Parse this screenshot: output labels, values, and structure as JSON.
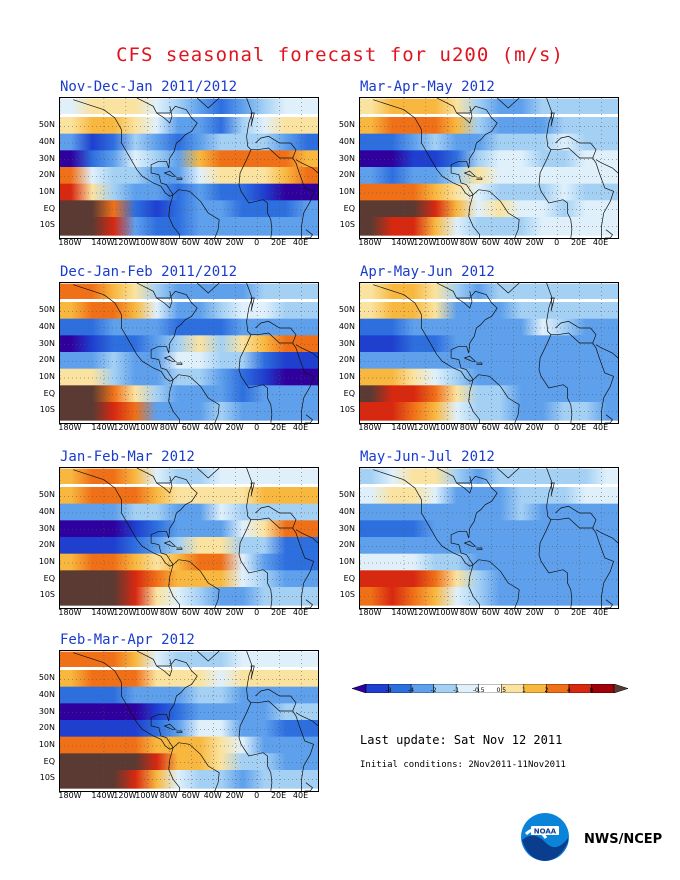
{
  "title": "CFS seasonal forecast for u200 (m/s)",
  "axes": {
    "lat_labels": [
      "50N",
      "40N",
      "30N",
      "20N",
      "10N",
      "EQ",
      "10S"
    ],
    "lon_labels": [
      "180W",
      "140W",
      "120W",
      "100W",
      "80W",
      "60W",
      "40W",
      "20W",
      "0",
      "20E",
      "40E"
    ]
  },
  "panels": [
    {
      "title": "Nov-Dec-Jan 2011/2012",
      "bands": [
        {
          "lat": 62,
          "w": 8,
          "levels": [
            5,
            6,
            6,
            6,
            5,
            4,
            3,
            2,
            3,
            4,
            5,
            5
          ]
        },
        {
          "lat": 50,
          "w": 10,
          "levels": [
            6,
            7,
            7,
            6,
            5,
            3,
            3,
            2,
            4,
            5,
            6,
            6
          ]
        },
        {
          "lat": 40,
          "w": 10,
          "levels": [
            3,
            1,
            2,
            4,
            3,
            2,
            3,
            4,
            4,
            4,
            3,
            2
          ]
        },
        {
          "lat": 30,
          "w": 10,
          "levels": [
            0,
            2,
            3,
            5,
            4,
            3,
            7,
            8,
            8,
            8,
            8,
            7
          ]
        },
        {
          "lat": 20,
          "w": 10,
          "levels": [
            8,
            5,
            4,
            4,
            3,
            3,
            5,
            6,
            6,
            6,
            7,
            8
          ]
        },
        {
          "lat": 10,
          "w": 10,
          "levels": [
            9,
            6,
            4,
            3,
            3,
            2,
            3,
            2,
            2,
            1,
            0,
            0
          ]
        },
        {
          "lat": 0,
          "w": 10,
          "levels": [
            10,
            10,
            8,
            2,
            1,
            2,
            3,
            3,
            2,
            2,
            2,
            3
          ]
        },
        {
          "lat": -10,
          "w": 10,
          "levels": [
            10,
            10,
            9,
            3,
            2,
            2,
            3,
            3,
            3,
            3,
            3,
            3
          ]
        }
      ]
    },
    {
      "title": "Mar-Apr-May 2012",
      "bands": [
        {
          "lat": 62,
          "w": 8,
          "levels": [
            6,
            7,
            7,
            7,
            6,
            4,
            3,
            3,
            4,
            4,
            4,
            4
          ]
        },
        {
          "lat": 50,
          "w": 10,
          "levels": [
            7,
            8,
            8,
            8,
            7,
            4,
            3,
            3,
            3,
            4,
            4,
            4
          ]
        },
        {
          "lat": 40,
          "w": 10,
          "levels": [
            2,
            2,
            3,
            4,
            3,
            3,
            4,
            4,
            4,
            5,
            4,
            4
          ]
        },
        {
          "lat": 30,
          "w": 10,
          "levels": [
            0,
            0,
            1,
            1,
            2,
            4,
            5,
            5,
            4,
            4,
            5,
            5
          ]
        },
        {
          "lat": 20,
          "w": 10,
          "levels": [
            3,
            2,
            3,
            3,
            4,
            6,
            5,
            5,
            5,
            5,
            5,
            5
          ]
        },
        {
          "lat": 10,
          "w": 10,
          "levels": [
            8,
            8,
            8,
            7,
            6,
            5,
            4,
            4,
            4,
            5,
            4,
            4
          ]
        },
        {
          "lat": 0,
          "w": 10,
          "levels": [
            10,
            10,
            10,
            9,
            7,
            5,
            6,
            5,
            5,
            4,
            5,
            5
          ]
        },
        {
          "lat": -10,
          "w": 10,
          "levels": [
            10,
            9,
            9,
            7,
            5,
            4,
            4,
            4,
            5,
            5,
            5,
            5
          ]
        }
      ]
    },
    {
      "title": "Dec-Jan-Feb 2011/2012",
      "bands": [
        {
          "lat": 62,
          "w": 8,
          "levels": [
            8,
            8,
            7,
            6,
            4,
            3,
            3,
            3,
            3,
            4,
            4,
            4
          ]
        },
        {
          "lat": 50,
          "w": 10,
          "levels": [
            7,
            8,
            8,
            7,
            5,
            3,
            3,
            4,
            5,
            5,
            4,
            4
          ]
        },
        {
          "lat": 40,
          "w": 10,
          "levels": [
            2,
            2,
            3,
            3,
            3,
            2,
            2,
            2,
            3,
            3,
            3,
            3
          ]
        },
        {
          "lat": 30,
          "w": 10,
          "levels": [
            0,
            1,
            2,
            2,
            3,
            4,
            6,
            4,
            6,
            7,
            8,
            8
          ]
        },
        {
          "lat": 20,
          "w": 10,
          "levels": [
            3,
            3,
            4,
            3,
            3,
            5,
            5,
            4,
            4,
            2,
            1,
            1
          ]
        },
        {
          "lat": 10,
          "w": 10,
          "levels": [
            6,
            6,
            4,
            3,
            3,
            4,
            4,
            3,
            2,
            1,
            0,
            0
          ]
        },
        {
          "lat": 0,
          "w": 10,
          "levels": [
            10,
            10,
            8,
            6,
            4,
            3,
            3,
            3,
            2,
            3,
            3,
            3
          ]
        },
        {
          "lat": -10,
          "w": 10,
          "levels": [
            10,
            10,
            9,
            8,
            3,
            3,
            3,
            4,
            3,
            3,
            3,
            3
          ]
        }
      ]
    },
    {
      "title": "Apr-May-Jun 2012",
      "bands": [
        {
          "lat": 62,
          "w": 8,
          "levels": [
            6,
            7,
            7,
            6,
            4,
            3,
            4,
            4,
            4,
            4,
            4,
            4
          ]
        },
        {
          "lat": 50,
          "w": 10,
          "levels": [
            6,
            7,
            7,
            6,
            3,
            3,
            3,
            4,
            4,
            4,
            4,
            4
          ]
        },
        {
          "lat": 40,
          "w": 10,
          "levels": [
            2,
            2,
            3,
            3,
            3,
            3,
            3,
            3,
            5,
            4,
            3,
            3
          ]
        },
        {
          "lat": 30,
          "w": 10,
          "levels": [
            1,
            1,
            2,
            2,
            3,
            3,
            3,
            3,
            3,
            3,
            3,
            3
          ]
        },
        {
          "lat": 20,
          "w": 10,
          "levels": [
            3,
            3,
            3,
            3,
            3,
            3,
            3,
            3,
            3,
            3,
            3,
            3
          ]
        },
        {
          "lat": 10,
          "w": 10,
          "levels": [
            7,
            7,
            6,
            5,
            4,
            3,
            3,
            3,
            3,
            3,
            3,
            3
          ]
        },
        {
          "lat": 0,
          "w": 10,
          "levels": [
            10,
            9,
            9,
            8,
            6,
            4,
            4,
            3,
            3,
            3,
            3,
            3
          ]
        },
        {
          "lat": -10,
          "w": 10,
          "levels": [
            9,
            9,
            8,
            7,
            5,
            4,
            4,
            3,
            3,
            4,
            4,
            3
          ]
        }
      ]
    },
    {
      "title": "Jan-Feb-Mar 2012",
      "bands": [
        {
          "lat": 62,
          "w": 8,
          "levels": [
            7,
            8,
            8,
            7,
            5,
            4,
            4,
            5,
            5,
            5,
            5,
            5
          ]
        },
        {
          "lat": 50,
          "w": 10,
          "levels": [
            7,
            8,
            8,
            8,
            7,
            6,
            6,
            6,
            6,
            7,
            7,
            7
          ]
        },
        {
          "lat": 40,
          "w": 10,
          "levels": [
            3,
            3,
            3,
            4,
            4,
            3,
            3,
            5,
            4,
            4,
            4,
            4
          ]
        },
        {
          "lat": 30,
          "w": 10,
          "levels": [
            0,
            0,
            0,
            1,
            2,
            3,
            3,
            3,
            5,
            6,
            8,
            8
          ]
        },
        {
          "lat": 20,
          "w": 10,
          "levels": [
            1,
            1,
            1,
            2,
            3,
            4,
            6,
            6,
            4,
            4,
            2,
            2
          ]
        },
        {
          "lat": 10,
          "w": 10,
          "levels": [
            7,
            8,
            8,
            7,
            6,
            7,
            8,
            8,
            5,
            3,
            2,
            2
          ]
        },
        {
          "lat": 0,
          "w": 10,
          "levels": [
            10,
            10,
            10,
            9,
            8,
            7,
            7,
            7,
            5,
            4,
            3,
            3
          ]
        },
        {
          "lat": -10,
          "w": 10,
          "levels": [
            10,
            10,
            10,
            9,
            6,
            5,
            4,
            3,
            3,
            4,
            4,
            4
          ]
        }
      ]
    },
    {
      "title": "May-Jun-Jul 2012",
      "bands": [
        {
          "lat": 62,
          "w": 8,
          "levels": [
            4,
            5,
            6,
            6,
            4,
            3,
            4,
            4,
            4,
            4,
            4,
            5
          ]
        },
        {
          "lat": 50,
          "w": 10,
          "levels": [
            5,
            6,
            6,
            5,
            3,
            3,
            3,
            4,
            4,
            4,
            5,
            5
          ]
        },
        {
          "lat": 40,
          "w": 10,
          "levels": [
            3,
            3,
            3,
            3,
            3,
            3,
            3,
            4,
            3,
            3,
            3,
            3
          ]
        },
        {
          "lat": 30,
          "w": 10,
          "levels": [
            2,
            2,
            2,
            3,
            3,
            3,
            3,
            3,
            3,
            3,
            3,
            3
          ]
        },
        {
          "lat": 20,
          "w": 10,
          "levels": [
            3,
            3,
            3,
            3,
            3,
            3,
            3,
            3,
            3,
            3,
            3,
            3
          ]
        },
        {
          "lat": 10,
          "w": 10,
          "levels": [
            5,
            5,
            5,
            4,
            4,
            3,
            3,
            3,
            3,
            3,
            3,
            3
          ]
        },
        {
          "lat": 0,
          "w": 10,
          "levels": [
            9,
            9,
            9,
            8,
            6,
            4,
            3,
            3,
            3,
            3,
            3,
            3
          ]
        },
        {
          "lat": -10,
          "w": 10,
          "levels": [
            8,
            9,
            8,
            7,
            5,
            4,
            3,
            3,
            3,
            3,
            3,
            3
          ]
        }
      ]
    },
    {
      "title": "Feb-Mar-Apr 2012",
      "bands": [
        {
          "lat": 62,
          "w": 8,
          "levels": [
            8,
            8,
            8,
            7,
            5,
            4,
            4,
            4,
            5,
            5,
            5,
            5
          ]
        },
        {
          "lat": 50,
          "w": 10,
          "levels": [
            7,
            8,
            8,
            8,
            6,
            6,
            6,
            5,
            6,
            6,
            6,
            6
          ]
        },
        {
          "lat": 40,
          "w": 10,
          "levels": [
            2,
            2,
            2,
            3,
            3,
            3,
            4,
            4,
            3,
            3,
            3,
            3
          ]
        },
        {
          "lat": 30,
          "w": 10,
          "levels": [
            0,
            0,
            0,
            0,
            1,
            2,
            3,
            3,
            3,
            3,
            4,
            4
          ]
        },
        {
          "lat": 20,
          "w": 10,
          "levels": [
            1,
            1,
            1,
            1,
            2,
            3,
            5,
            5,
            3,
            3,
            2,
            2
          ]
        },
        {
          "lat": 10,
          "w": 10,
          "levels": [
            8,
            8,
            8,
            8,
            7,
            7,
            7,
            6,
            5,
            3,
            3,
            3
          ]
        },
        {
          "lat": 0,
          "w": 10,
          "levels": [
            10,
            10,
            10,
            10,
            9,
            7,
            7,
            6,
            4,
            4,
            3,
            3
          ]
        },
        {
          "lat": -10,
          "w": 10,
          "levels": [
            10,
            10,
            10,
            9,
            7,
            5,
            4,
            4,
            3,
            4,
            4,
            4
          ]
        }
      ]
    }
  ],
  "colorbar": {
    "tick_labels": [
      "-8",
      "-4",
      "-2",
      "-1",
      "-0.5",
      "0.5",
      "1",
      "2",
      "4",
      "8"
    ],
    "colors": [
      "#30009e",
      "#1e3fd0",
      "#2e6fe0",
      "#5ea0ec",
      "#a4d0f4",
      "#dff0fb",
      "#ffffff",
      "#fae3a0",
      "#f8b840",
      "#f07018",
      "#d82810",
      "#a00008",
      "#5a3a32"
    ]
  },
  "footer": {
    "last_update": "Last update: Sat Nov 12 2011",
    "initial_conditions": "Initial conditions: 2Nov2011-11Nov2011",
    "credit": "NWS/NCEP",
    "logo_text": "NOAA"
  }
}
